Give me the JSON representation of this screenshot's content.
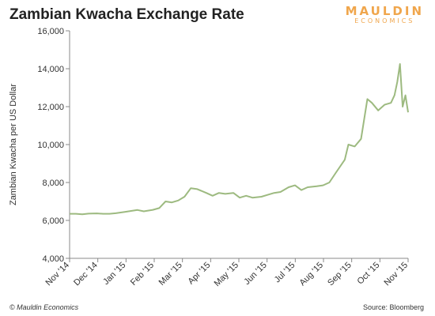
{
  "header": {
    "title": "Zambian Kwacha Exchange Rate",
    "brand_line1": "MAULDIN",
    "brand_line2": "ECONOMICS"
  },
  "footer": {
    "copyright": "© Mauldin Economics",
    "source": "Source: Bloomberg"
  },
  "colors": {
    "line": "#9dba80",
    "axis": "#888888",
    "brand": "#f0a64c"
  },
  "chart_data": {
    "type": "line",
    "title": "Zambian Kwacha Exchange Rate",
    "xlabel": "",
    "ylabel": "Zambian Kwacha per US Dollar",
    "ylim": [
      4000,
      16000
    ],
    "yticks": [
      4000,
      6000,
      8000,
      10000,
      12000,
      14000,
      16000
    ],
    "ytick_labels": [
      "4,000",
      "6,000",
      "8,000",
      "10,000",
      "12,000",
      "14,000",
      "16,000"
    ],
    "xtick_labels": [
      "Nov '14",
      "Dec '14",
      "Jan '15",
      "Feb '15",
      "Mar '15",
      "Apr '15",
      "May '15",
      "Jun '15",
      "Jul '15",
      "Aug '15",
      "Sep '15",
      "Oct '15",
      "Nov '15"
    ],
    "grid": false,
    "series": [
      {
        "name": "",
        "x": [
          "2014-11-01",
          "2014-11-08",
          "2014-11-15",
          "2014-11-22",
          "2014-12-01",
          "2014-12-08",
          "2014-12-15",
          "2014-12-22",
          "2015-01-01",
          "2015-01-08",
          "2015-01-15",
          "2015-01-22",
          "2015-02-01",
          "2015-02-08",
          "2015-02-15",
          "2015-02-22",
          "2015-03-01",
          "2015-03-08",
          "2015-03-15",
          "2015-03-22",
          "2015-04-01",
          "2015-04-08",
          "2015-04-15",
          "2015-04-22",
          "2015-05-01",
          "2015-05-08",
          "2015-05-15",
          "2015-05-22",
          "2015-06-01",
          "2015-06-08",
          "2015-06-15",
          "2015-06-22",
          "2015-07-01",
          "2015-07-08",
          "2015-07-15",
          "2015-07-22",
          "2015-08-01",
          "2015-08-08",
          "2015-08-15",
          "2015-08-22",
          "2015-09-01",
          "2015-09-05",
          "2015-09-12",
          "2015-09-19",
          "2015-09-26",
          "2015-10-01",
          "2015-10-08",
          "2015-10-15",
          "2015-10-22",
          "2015-10-26",
          "2015-10-29",
          "2015-11-01",
          "2015-11-04",
          "2015-11-07",
          "2015-11-10"
        ],
        "y": [
          6350,
          6350,
          6320,
          6360,
          6370,
          6350,
          6350,
          6380,
          6450,
          6500,
          6550,
          6480,
          6560,
          6650,
          7000,
          6950,
          7050,
          7250,
          7700,
          7650,
          7450,
          7300,
          7450,
          7400,
          7450,
          7200,
          7300,
          7200,
          7250,
          7350,
          7450,
          7500,
          7750,
          7850,
          7600,
          7750,
          7800,
          7850,
          8000,
          8500,
          9200,
          10000,
          9900,
          10300,
          12400,
          12200,
          11800,
          12100,
          12200,
          12600,
          13300,
          14250,
          12000,
          12600,
          11700
        ]
      }
    ]
  }
}
